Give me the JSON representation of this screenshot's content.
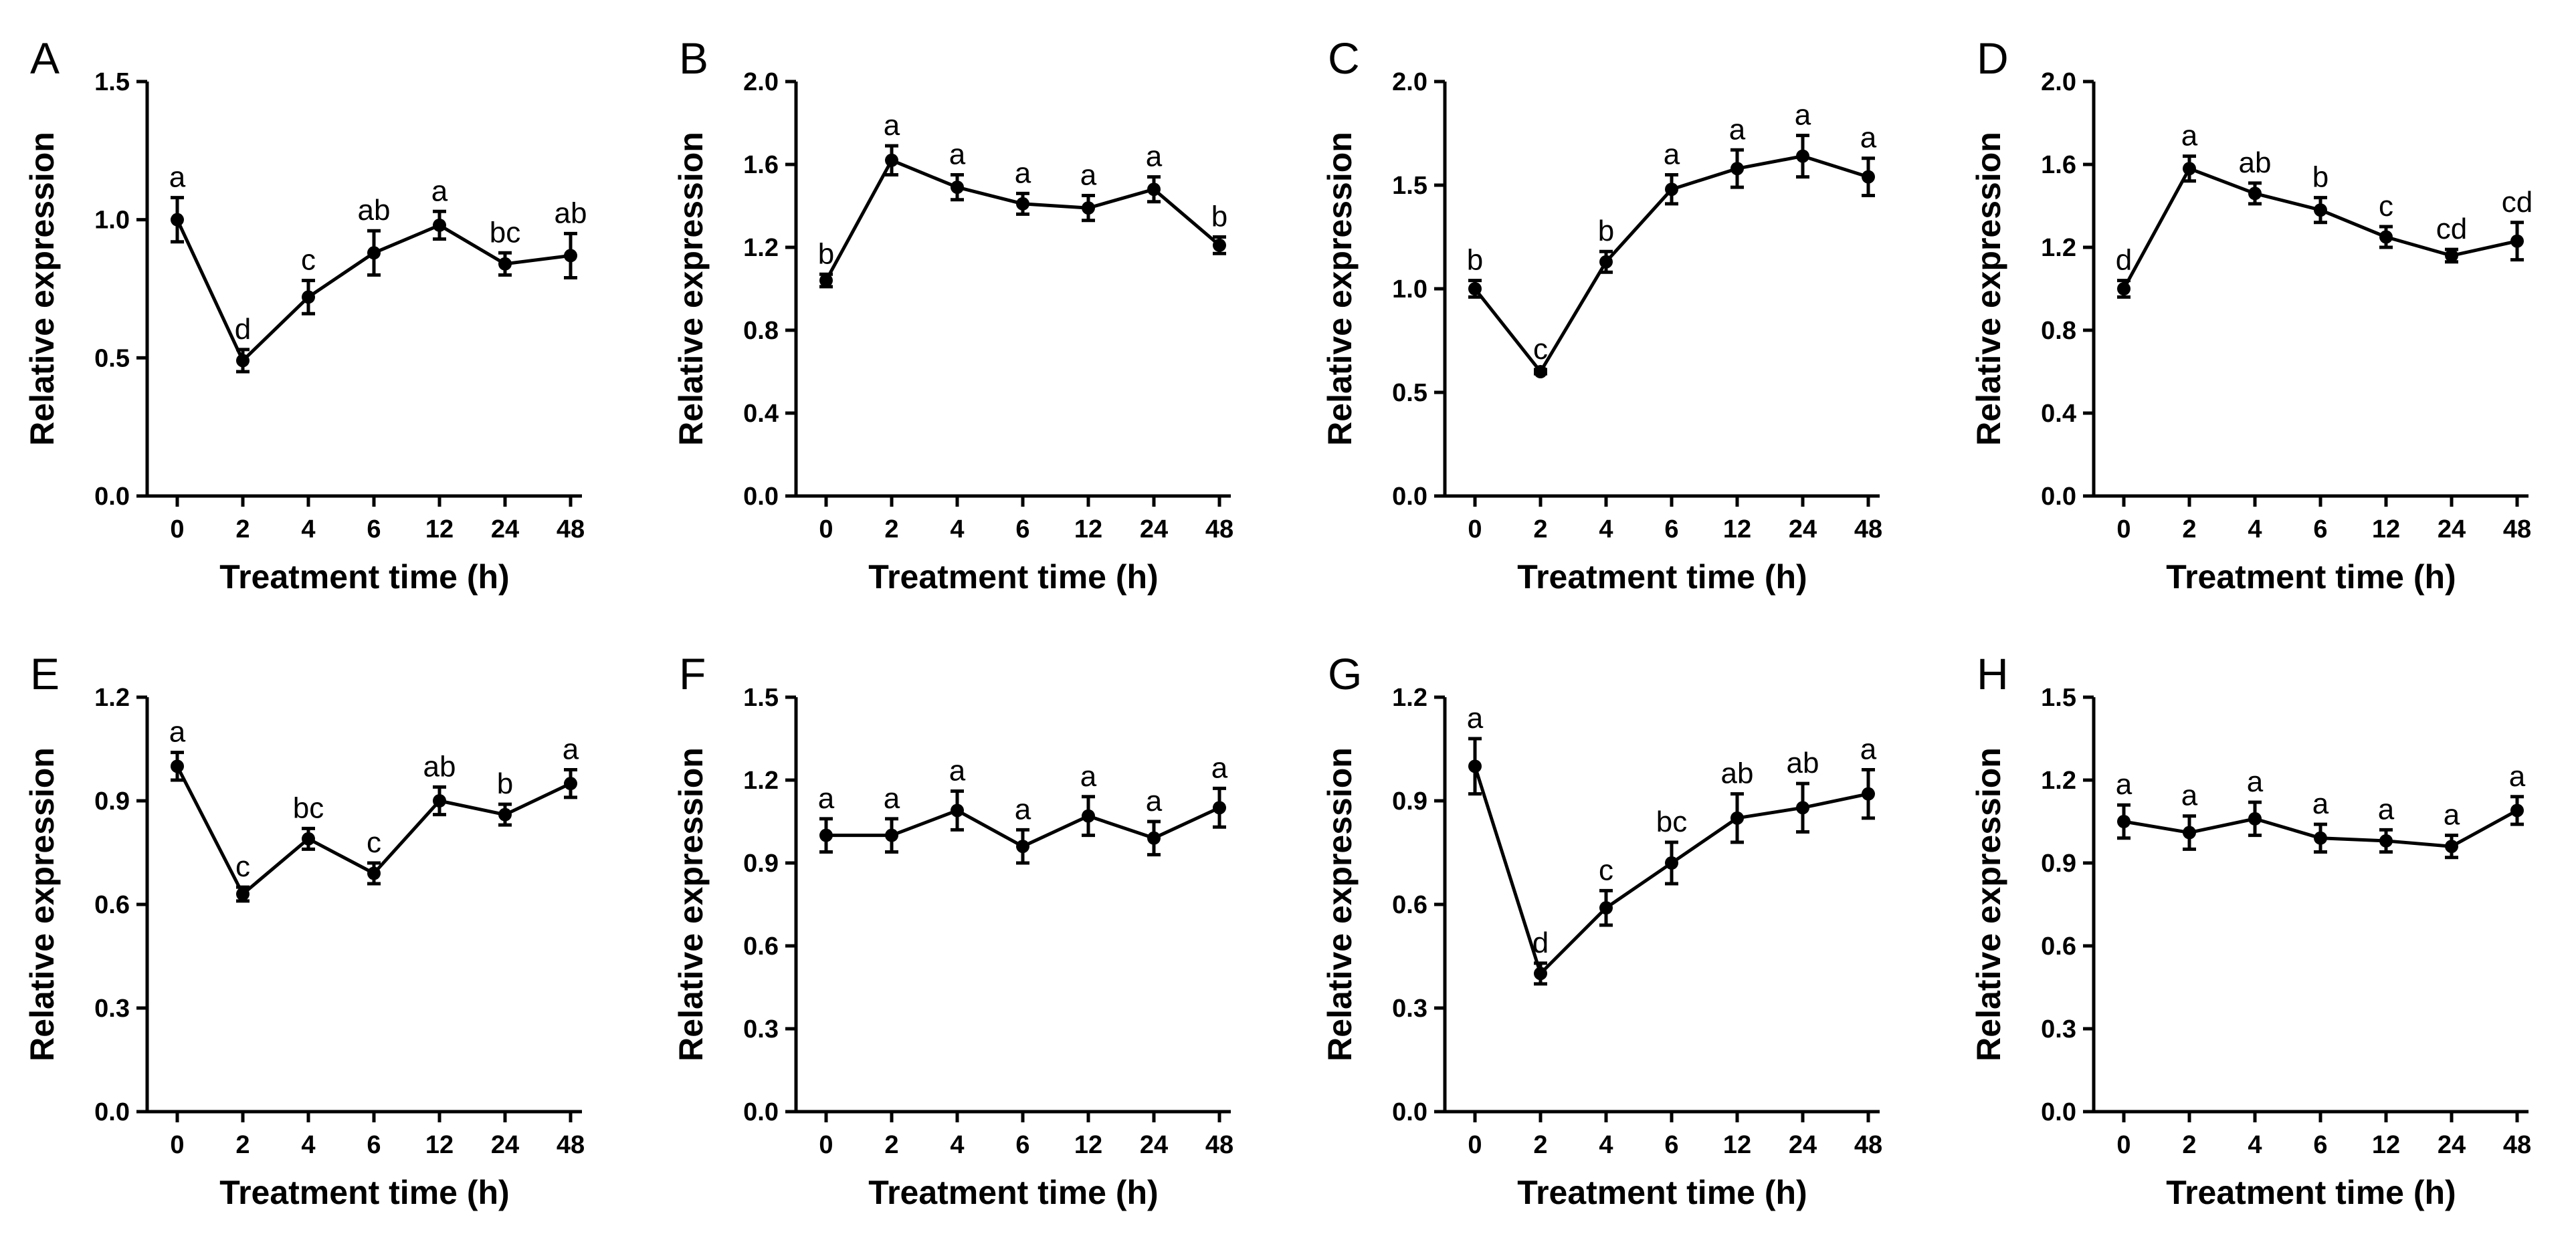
{
  "figure": {
    "xlabel": "Treatment time (h)",
    "ylabel": "Relative expression"
  },
  "chart_data": [
    {
      "panel": "A",
      "type": "line",
      "title": "",
      "xlabel": "Treatment time (h)",
      "ylabel": "Relative expression",
      "categories": [
        "0",
        "2",
        "4",
        "6",
        "12",
        "24",
        "48"
      ],
      "values": [
        1.0,
        0.49,
        0.72,
        0.88,
        0.98,
        0.84,
        0.87
      ],
      "errors": [
        0.08,
        0.04,
        0.06,
        0.08,
        0.05,
        0.04,
        0.08
      ],
      "letters": [
        "a",
        "d",
        "c",
        "ab",
        "a",
        "bc",
        "ab"
      ],
      "yticks": [
        "0.0",
        "0.5",
        "1.0",
        "1.5"
      ],
      "ylim": [
        0,
        1.5
      ]
    },
    {
      "panel": "B",
      "type": "line",
      "title": "",
      "xlabel": "Treatment time (h)",
      "ylabel": "Relative expression",
      "categories": [
        "0",
        "2",
        "4",
        "6",
        "12",
        "24",
        "48"
      ],
      "values": [
        1.04,
        1.62,
        1.49,
        1.41,
        1.39,
        1.48,
        1.21
      ],
      "errors": [
        0.03,
        0.07,
        0.06,
        0.05,
        0.06,
        0.06,
        0.04
      ],
      "letters": [
        "b",
        "a",
        "a",
        "a",
        "a",
        "a",
        "b"
      ],
      "yticks": [
        "0.0",
        "0.4",
        "0.8",
        "1.2",
        "1.6",
        "2.0"
      ],
      "ylim": [
        0,
        2.0
      ]
    },
    {
      "panel": "C",
      "type": "line",
      "title": "",
      "xlabel": "Treatment time (h)",
      "ylabel": "Relative expression",
      "categories": [
        "0",
        "2",
        "4",
        "6",
        "12",
        "24",
        "48"
      ],
      "values": [
        1.0,
        0.6,
        1.13,
        1.48,
        1.58,
        1.64,
        1.54
      ],
      "errors": [
        0.04,
        0.01,
        0.05,
        0.07,
        0.09,
        0.1,
        0.09
      ],
      "letters": [
        "b",
        "c",
        "b",
        "a",
        "a",
        "a",
        "a"
      ],
      "yticks": [
        "0.0",
        "0.5",
        "1.0",
        "1.5",
        "2.0"
      ],
      "ylim": [
        0,
        2.0
      ]
    },
    {
      "panel": "D",
      "type": "line",
      "title": "",
      "xlabel": "Treatment time (h)",
      "ylabel": "Relative expression",
      "categories": [
        "0",
        "2",
        "4",
        "6",
        "12",
        "24",
        "48"
      ],
      "values": [
        1.0,
        1.58,
        1.46,
        1.38,
        1.25,
        1.16,
        1.23
      ],
      "errors": [
        0.04,
        0.06,
        0.05,
        0.06,
        0.05,
        0.03,
        0.09
      ],
      "letters": [
        "d",
        "a",
        "ab",
        "b",
        "c",
        "cd",
        "cd"
      ],
      "yticks": [
        "0.0",
        "0.4",
        "0.8",
        "1.2",
        "1.6",
        "2.0"
      ],
      "ylim": [
        0,
        2.0
      ]
    },
    {
      "panel": "E",
      "type": "line",
      "title": "",
      "xlabel": "Treatment time (h)",
      "ylabel": "Relative expression",
      "categories": [
        "0",
        "2",
        "4",
        "6",
        "12",
        "24",
        "48"
      ],
      "values": [
        1.0,
        0.63,
        0.79,
        0.69,
        0.9,
        0.86,
        0.95
      ],
      "errors": [
        0.04,
        0.02,
        0.03,
        0.03,
        0.04,
        0.03,
        0.04
      ],
      "letters": [
        "a",
        "c",
        "bc",
        "c",
        "ab",
        "b",
        "a"
      ],
      "yticks": [
        "0.0",
        "0.3",
        "0.6",
        "0.9",
        "1.2"
      ],
      "ylim": [
        0,
        1.2
      ]
    },
    {
      "panel": "F",
      "type": "line",
      "title": "",
      "xlabel": "Treatment time (h)",
      "ylabel": "Relative expression",
      "categories": [
        "0",
        "2",
        "4",
        "6",
        "12",
        "24",
        "48"
      ],
      "values": [
        1.0,
        1.0,
        1.09,
        0.96,
        1.07,
        0.99,
        1.1
      ],
      "errors": [
        0.06,
        0.06,
        0.07,
        0.06,
        0.07,
        0.06,
        0.07
      ],
      "letters": [
        "a",
        "a",
        "a",
        "a",
        "a",
        "a",
        "a"
      ],
      "yticks": [
        "0.0",
        "0.3",
        "0.6",
        "0.9",
        "1.2",
        "1.5"
      ],
      "ylim": [
        0,
        1.5
      ]
    },
    {
      "panel": "G",
      "type": "line",
      "title": "",
      "xlabel": "Treatment time (h)",
      "ylabel": "Relative expression",
      "categories": [
        "0",
        "2",
        "4",
        "6",
        "12",
        "24",
        "48"
      ],
      "values": [
        1.0,
        0.4,
        0.59,
        0.72,
        0.85,
        0.88,
        0.92
      ],
      "errors": [
        0.08,
        0.03,
        0.05,
        0.06,
        0.07,
        0.07,
        0.07
      ],
      "letters": [
        "a",
        "d",
        "c",
        "bc",
        "ab",
        "ab",
        "a"
      ],
      "yticks": [
        "0.0",
        "0.3",
        "0.6",
        "0.9",
        "1.2"
      ],
      "ylim": [
        0,
        1.2
      ]
    },
    {
      "panel": "H",
      "type": "line",
      "title": "",
      "xlabel": "Treatment time (h)",
      "ylabel": "Relative expression",
      "categories": [
        "0",
        "2",
        "4",
        "6",
        "12",
        "24",
        "48"
      ],
      "values": [
        1.05,
        1.01,
        1.06,
        0.99,
        0.98,
        0.96,
        1.09
      ],
      "errors": [
        0.06,
        0.06,
        0.06,
        0.05,
        0.04,
        0.04,
        0.05
      ],
      "letters": [
        "a",
        "a",
        "a",
        "a",
        "a",
        "a",
        "a"
      ],
      "yticks": [
        "0.0",
        "0.3",
        "0.6",
        "0.9",
        "1.2",
        "1.5"
      ],
      "ylim": [
        0,
        1.5
      ]
    }
  ]
}
